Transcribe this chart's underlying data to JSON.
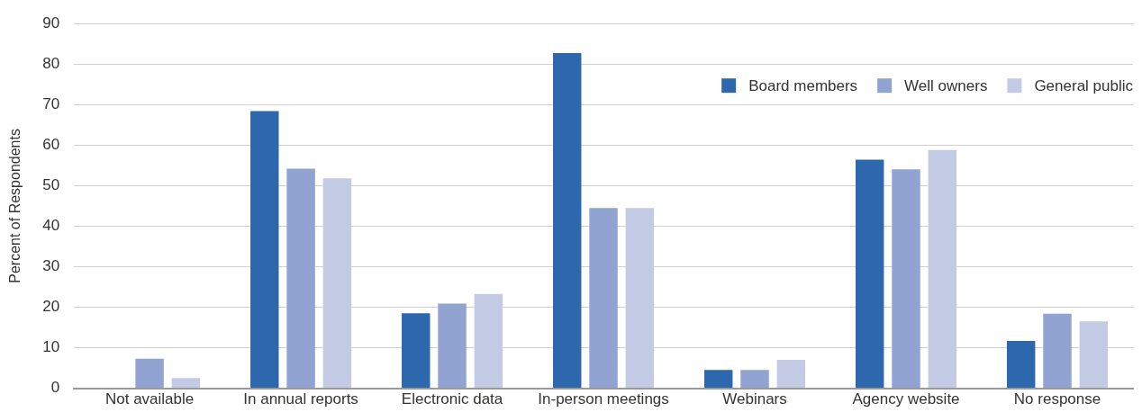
{
  "chart_data": {
    "type": "bar",
    "ylabel": "Percent of Respondents",
    "categories": [
      "Not available",
      "In annual reports",
      "Electronic data",
      "In-person meetings",
      "Webinars",
      "Agency website",
      "No response"
    ],
    "series": [
      {
        "name": "Board members",
        "color": "#2d67ae",
        "values": [
          0,
          68.4,
          18.5,
          82.7,
          4.5,
          56.4,
          11.7
        ]
      },
      {
        "name": "Well owners",
        "color": "#91a3d0",
        "values": [
          7.3,
          54.2,
          20.9,
          44.5,
          4.5,
          54.0,
          18.4
        ]
      },
      {
        "name": "General public",
        "color": "#c3cae4",
        "values": [
          2.5,
          51.8,
          23.3,
          44.5,
          7.0,
          58.8,
          16.5
        ]
      }
    ],
    "ylim": [
      0,
      90
    ],
    "yticks": [
      0,
      10,
      20,
      30,
      40,
      50,
      60,
      70,
      80,
      90
    ],
    "grid": "y",
    "legend": "top right"
  }
}
